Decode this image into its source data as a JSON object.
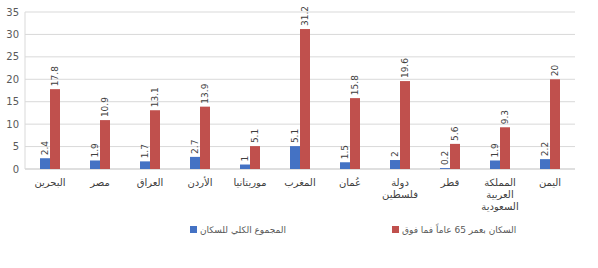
{
  "chart_data": {
    "type": "bar",
    "categories": [
      "البحرين",
      "مصر",
      "العراق",
      "الأردن",
      "موريتانيا",
      "المغرب",
      "عُمان",
      "دولة فلسطين",
      "قطر",
      "المملكة العربية السعودية",
      "اليمن"
    ],
    "series": [
      {
        "name": "المجموع الكلي للسكان",
        "color": "#4472c4",
        "values": [
          2.4,
          1.9,
          1.7,
          2.7,
          1,
          5.1,
          1.5,
          2,
          0.2,
          1.9,
          2.2
        ]
      },
      {
        "name": "السكان بعمر 65 عاماً فما فوق",
        "color": "#c0504d",
        "values": [
          17.8,
          10.9,
          13.1,
          13.9,
          5.1,
          31.2,
          15.8,
          19.6,
          5.6,
          9.3,
          20
        ]
      }
    ],
    "ylim": [
      0,
      35
    ],
    "yticks": [
      0,
      5,
      10,
      15,
      20,
      25,
      30,
      35
    ],
    "grid": true,
    "data_labels": true,
    "legend": "bottom"
  }
}
